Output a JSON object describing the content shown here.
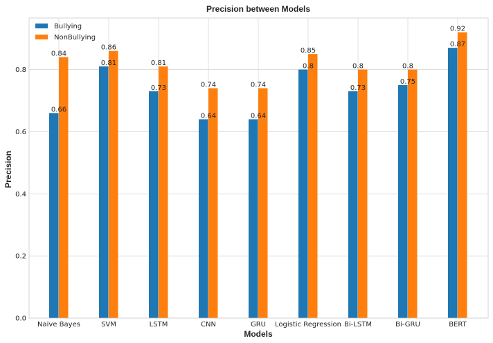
{
  "chart_data": {
    "type": "bar",
    "title": "Precision between Models",
    "xlabel": "Models",
    "ylabel": "Precision",
    "categories": [
      "Naive Bayes",
      "SVM",
      "LSTM",
      "CNN",
      "GRU",
      "Logistic Regression",
      "Bi-LSTM",
      "Bi-GRU",
      "BERT"
    ],
    "series": [
      {
        "name": "Bullying",
        "values": [
          0.66,
          0.81,
          0.73,
          0.64,
          0.64,
          0.8,
          0.73,
          0.75,
          0.87
        ],
        "labels": [
          "0.66",
          "0.81",
          "0.73",
          "0.64",
          "0.64",
          "0.8",
          "0.73",
          "0.75",
          "0.87"
        ],
        "color": "#1f77b4"
      },
      {
        "name": "NonBullying",
        "values": [
          0.84,
          0.86,
          0.81,
          0.74,
          0.74,
          0.85,
          0.8,
          0.8,
          0.92
        ],
        "labels": [
          "0.84",
          "0.86",
          "0.81",
          "0.74",
          "0.74",
          "0.85",
          "0.8",
          "0.8",
          "0.92"
        ],
        "color": "#ff7f0e"
      }
    ],
    "yticks": [
      0.0,
      0.2,
      0.4,
      0.6,
      0.8
    ],
    "ytick_labels": [
      "0.0",
      "0.2",
      "0.4",
      "0.6",
      "0.8"
    ],
    "ylim": [
      0,
      0.966
    ],
    "grid": true,
    "legend": "top-left"
  }
}
